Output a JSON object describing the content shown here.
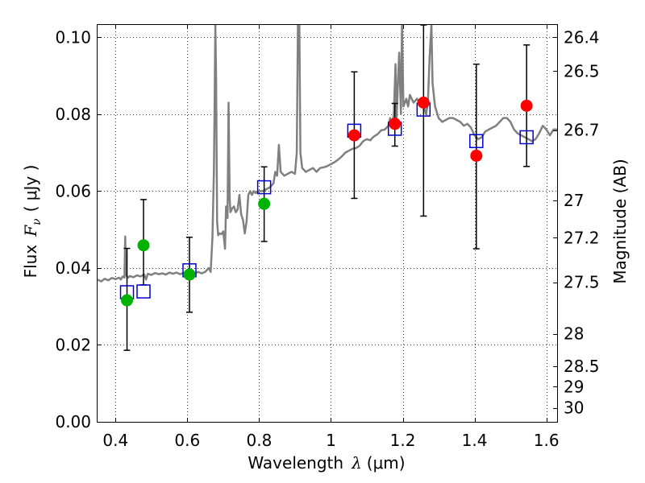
{
  "chart_data": {
    "type": "scatter",
    "xlabel_prefix": "Wavelength",
    "xlabel_symbol": "λ",
    "xlabel_unit": "(μm)",
    "ylabel_prefix": "Flux",
    "ylabel_symbol": "F",
    "ylabel_subscript": "ν",
    "ylabel_unit": "( μJy )",
    "y2label": "Magnitude (AB)",
    "xlim": [
      0.35,
      1.63
    ],
    "ylim": [
      0.0,
      0.1032
    ],
    "grid": true,
    "xticks": [
      0.4,
      0.6,
      0.8,
      1.0,
      1.2,
      1.4,
      1.6
    ],
    "xtick_labels": [
      "0.4",
      "0.6",
      "0.8",
      "1",
      "1.2",
      "1.4",
      "1.6"
    ],
    "yticks": [
      0.0,
      0.02,
      0.04,
      0.06,
      0.08,
      0.1
    ],
    "ytick_labels": [
      "0.00",
      "0.02",
      "0.04",
      "0.06",
      "0.08",
      "0.10"
    ],
    "y2ticks": [
      {
        "label": "26.4",
        "mag": 26.4
      },
      {
        "label": "26.5",
        "mag": 26.5
      },
      {
        "label": "26.7",
        "mag": 26.7
      },
      {
        "label": "27",
        "mag": 27.0
      },
      {
        "label": "27.2",
        "mag": 27.2
      },
      {
        "label": "27.5",
        "mag": 27.5
      },
      {
        "label": "28",
        "mag": 28.0
      },
      {
        "label": "28.5",
        "mag": 28.5
      },
      {
        "label": "29",
        "mag": 29.0
      },
      {
        "label": "30",
        "mag": 30.0
      }
    ],
    "series": [
      {
        "name": "model-spectrum",
        "kind": "line",
        "color": "#808080",
        "points": [
          [
            0.35,
            0.037
          ],
          [
            0.36,
            0.0365
          ],
          [
            0.37,
            0.0372
          ],
          [
            0.38,
            0.0368
          ],
          [
            0.39,
            0.0374
          ],
          [
            0.4,
            0.0371
          ],
          [
            0.41,
            0.0375
          ],
          [
            0.415,
            0.037
          ],
          [
            0.42,
            0.0378
          ],
          [
            0.425,
            0.0375
          ],
          [
            0.427,
            0.0482
          ],
          [
            0.429,
            0.0382
          ],
          [
            0.435,
            0.0375
          ],
          [
            0.44,
            0.0379
          ],
          [
            0.45,
            0.0376
          ],
          [
            0.46,
            0.0381
          ],
          [
            0.47,
            0.0378
          ],
          [
            0.48,
            0.0383
          ],
          [
            0.485,
            0.037
          ],
          [
            0.49,
            0.0385
          ],
          [
            0.5,
            0.0382
          ],
          [
            0.51,
            0.0387
          ],
          [
            0.52,
            0.0384
          ],
          [
            0.53,
            0.0386
          ],
          [
            0.54,
            0.0383
          ],
          [
            0.55,
            0.0388
          ],
          [
            0.56,
            0.0385
          ],
          [
            0.57,
            0.0388
          ],
          [
            0.58,
            0.0384
          ],
          [
            0.59,
            0.0387
          ],
          [
            0.6,
            0.0384
          ],
          [
            0.61,
            0.0388
          ],
          [
            0.62,
            0.0385
          ],
          [
            0.63,
            0.039
          ],
          [
            0.64,
            0.0386
          ],
          [
            0.65,
            0.039
          ],
          [
            0.66,
            0.04
          ],
          [
            0.665,
            0.039
          ],
          [
            0.67,
            0.048
          ],
          [
            0.674,
            0.065
          ],
          [
            0.676,
            0.083
          ],
          [
            0.678,
            0.1032
          ],
          [
            0.68,
            0.09
          ],
          [
            0.683,
            0.052
          ],
          [
            0.686,
            0.0485
          ],
          [
            0.69,
            0.049
          ],
          [
            0.695,
            0.0488
          ],
          [
            0.7,
            0.0495
          ],
          [
            0.705,
            0.045
          ],
          [
            0.708,
            0.056
          ],
          [
            0.712,
            0.053
          ],
          [
            0.715,
            0.083
          ],
          [
            0.718,
            0.058
          ],
          [
            0.72,
            0.0545
          ],
          [
            0.725,
            0.0555
          ],
          [
            0.73,
            0.056
          ],
          [
            0.735,
            0.0545
          ],
          [
            0.74,
            0.0552
          ],
          [
            0.745,
            0.059
          ],
          [
            0.75,
            0.054
          ],
          [
            0.755,
            0.0525
          ],
          [
            0.76,
            0.049
          ],
          [
            0.765,
            0.052
          ],
          [
            0.77,
            0.059
          ],
          [
            0.775,
            0.06
          ],
          [
            0.78,
            0.059
          ],
          [
            0.785,
            0.06
          ],
          [
            0.79,
            0.0595
          ],
          [
            0.8,
            0.06
          ],
          [
            0.81,
            0.06
          ],
          [
            0.82,
            0.0605
          ],
          [
            0.83,
            0.061
          ],
          [
            0.84,
            0.062
          ],
          [
            0.845,
            0.065
          ],
          [
            0.85,
            0.064
          ],
          [
            0.855,
            0.072
          ],
          [
            0.86,
            0.065
          ],
          [
            0.87,
            0.064
          ],
          [
            0.88,
            0.0645
          ],
          [
            0.89,
            0.065
          ],
          [
            0.9,
            0.0645
          ],
          [
            0.905,
            0.07
          ],
          [
            0.908,
            0.1032
          ],
          [
            0.912,
            0.1032
          ],
          [
            0.915,
            0.07
          ],
          [
            0.92,
            0.066
          ],
          [
            0.93,
            0.065
          ],
          [
            0.94,
            0.0655
          ],
          [
            0.95,
            0.066
          ],
          [
            0.96,
            0.065
          ],
          [
            0.97,
            0.066
          ],
          [
            0.98,
            0.0662
          ],
          [
            0.99,
            0.0665
          ],
          [
            1.0,
            0.067
          ],
          [
            1.01,
            0.0675
          ],
          [
            1.02,
            0.0682
          ],
          [
            1.03,
            0.069
          ],
          [
            1.04,
            0.07
          ],
          [
            1.05,
            0.0705
          ],
          [
            1.06,
            0.071
          ],
          [
            1.07,
            0.0712
          ],
          [
            1.08,
            0.0718
          ],
          [
            1.09,
            0.073
          ],
          [
            1.1,
            0.0735
          ],
          [
            1.11,
            0.0732
          ],
          [
            1.115,
            0.0738
          ],
          [
            1.12,
            0.0742
          ],
          [
            1.13,
            0.0748
          ],
          [
            1.14,
            0.0758
          ],
          [
            1.15,
            0.076
          ],
          [
            1.16,
            0.077
          ],
          [
            1.165,
            0.079
          ],
          [
            1.17,
            0.077
          ],
          [
            1.175,
            0.08
          ],
          [
            1.18,
            0.093
          ],
          [
            1.183,
            0.079
          ],
          [
            1.19,
            0.096
          ],
          [
            1.195,
            0.08
          ],
          [
            1.198,
            0.1032
          ],
          [
            1.202,
            0.082
          ],
          [
            1.21,
            0.084
          ],
          [
            1.215,
            0.082
          ],
          [
            1.22,
            0.085
          ],
          [
            1.23,
            0.083
          ],
          [
            1.24,
            0.084
          ],
          [
            1.25,
            0.082
          ],
          [
            1.255,
            0.083
          ],
          [
            1.26,
            0.0815
          ],
          [
            1.265,
            0.08
          ],
          [
            1.27,
            0.083
          ],
          [
            1.275,
            0.095
          ],
          [
            1.28,
            0.1032
          ],
          [
            1.283,
            0.088
          ],
          [
            1.29,
            0.082
          ],
          [
            1.3,
            0.079
          ],
          [
            1.31,
            0.078
          ],
          [
            1.32,
            0.0785
          ],
          [
            1.33,
            0.079
          ],
          [
            1.34,
            0.079
          ],
          [
            1.35,
            0.0785
          ],
          [
            1.36,
            0.078
          ],
          [
            1.37,
            0.077
          ],
          [
            1.38,
            0.0775
          ],
          [
            1.39,
            0.0765
          ],
          [
            1.4,
            0.0745
          ],
          [
            1.41,
            0.0735
          ],
          [
            1.42,
            0.074
          ],
          [
            1.43,
            0.0755
          ],
          [
            1.44,
            0.076
          ],
          [
            1.45,
            0.0765
          ],
          [
            1.46,
            0.077
          ],
          [
            1.47,
            0.078
          ],
          [
            1.48,
            0.079
          ],
          [
            1.49,
            0.079
          ],
          [
            1.5,
            0.078
          ],
          [
            1.51,
            0.076
          ],
          [
            1.52,
            0.075
          ],
          [
            1.53,
            0.0745
          ],
          [
            1.54,
            0.074
          ],
          [
            1.55,
            0.0735
          ],
          [
            1.56,
            0.073
          ],
          [
            1.57,
            0.0735
          ],
          [
            1.58,
            0.075
          ],
          [
            1.59,
            0.077
          ],
          [
            1.6,
            0.076
          ],
          [
            1.61,
            0.0745
          ],
          [
            1.62,
            0.076
          ],
          [
            1.63,
            0.076
          ]
        ]
      },
      {
        "name": "model-band-flux",
        "kind": "open-square",
        "color": "#0000cc",
        "points": [
          [
            0.432,
            0.0337
          ],
          [
            0.478,
            0.0339
          ],
          [
            0.606,
            0.0394
          ],
          [
            0.814,
            0.061
          ],
          [
            1.065,
            0.0757
          ],
          [
            1.178,
            0.0762
          ],
          [
            1.258,
            0.0812
          ],
          [
            1.405,
            0.073
          ],
          [
            1.545,
            0.074
          ]
        ]
      },
      {
        "name": "observed-optical",
        "kind": "filled-circle",
        "color": "#00b300",
        "points": [
          [
            0.432,
            0.0316
          ],
          [
            0.478,
            0.0459
          ],
          [
            0.606,
            0.0383
          ],
          [
            0.814,
            0.0567
          ]
        ]
      },
      {
        "name": "observed-nir",
        "kind": "filled-circle",
        "color": "#ff0000",
        "points": [
          [
            1.065,
            0.0745
          ],
          [
            1.178,
            0.0775
          ],
          [
            1.258,
            0.083
          ],
          [
            1.405,
            0.0692
          ],
          [
            1.545,
            0.0822
          ]
        ]
      },
      {
        "name": "error-bars",
        "kind": "errorbar",
        "color": "#000000",
        "bars": [
          {
            "x": 0.432,
            "low": 0.0186,
            "high": 0.0451
          },
          {
            "x": 0.478,
            "low": 0.0356,
            "high": 0.0578
          },
          {
            "x": 0.606,
            "low": 0.0285,
            "high": 0.048
          },
          {
            "x": 0.814,
            "low": 0.0469,
            "high": 0.0663
          },
          {
            "x": 1.065,
            "low": 0.0581,
            "high": 0.091
          },
          {
            "x": 1.178,
            "low": 0.0717,
            "high": 0.0828
          },
          {
            "x": 1.258,
            "low": 0.0535,
            "high": 0.1032
          },
          {
            "x": 1.405,
            "low": 0.045,
            "high": 0.093
          },
          {
            "x": 1.545,
            "low": 0.0664,
            "high": 0.098
          }
        ]
      }
    ]
  }
}
